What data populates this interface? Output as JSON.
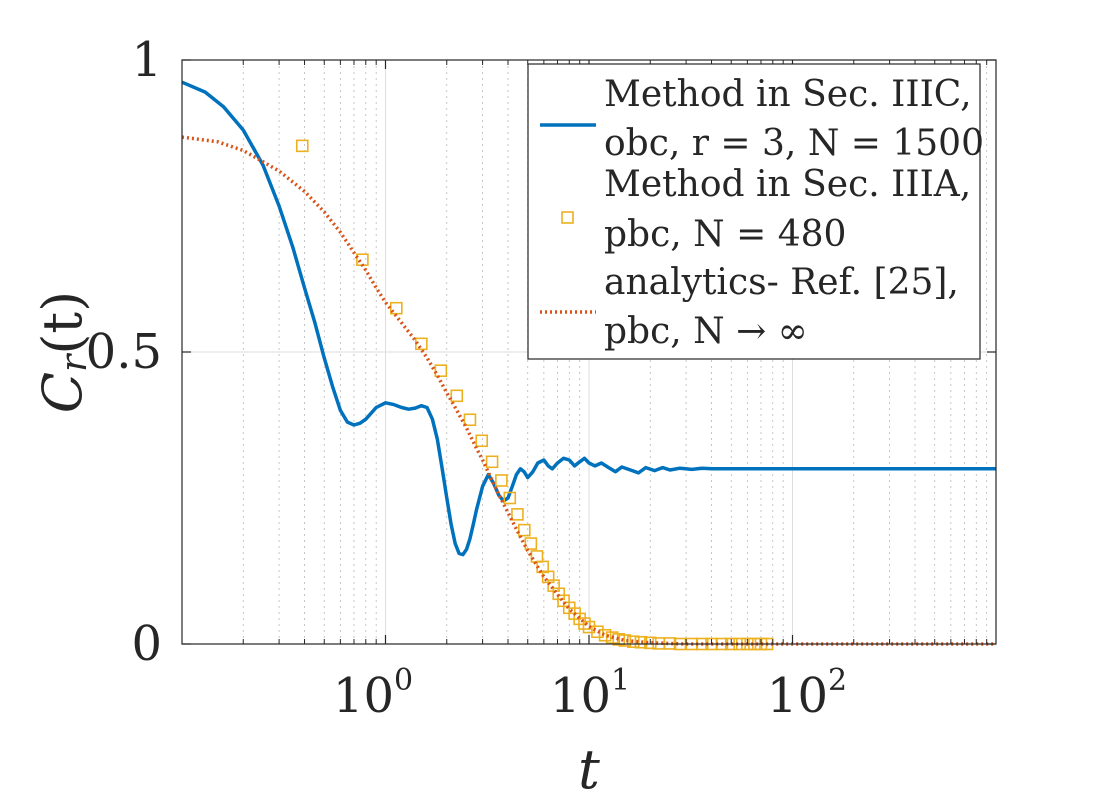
{
  "chart_data": {
    "type": "line",
    "xscale": "log",
    "xlim": [
      0.1,
      1000
    ],
    "ylim": [
      0,
      1
    ],
    "grid": true,
    "xlabel": "t",
    "ylabel": "C_r(t)",
    "ylabel_main": "C",
    "ylabel_sub": "r",
    "ylabel_args": "(t)",
    "xticks": [
      {
        "value": 1,
        "base": "10",
        "exp": "0"
      },
      {
        "value": 10,
        "base": "10",
        "exp": "1"
      },
      {
        "value": 100,
        "base": "10",
        "exp": "2"
      }
    ],
    "yticks": [
      {
        "value": 0,
        "label": "0"
      },
      {
        "value": 0.5,
        "label": "0.5"
      },
      {
        "value": 1,
        "label": "1"
      }
    ],
    "legend_position": "top-right",
    "series": [
      {
        "name": "Method in Sec. IIIC, obc, r = 3, N = 1500",
        "legend_line1": "Method in Sec. IIIC,",
        "legend_line2": "obc, r = 3, N = 1500",
        "style": "solid",
        "color": "#0072BD",
        "x": [
          0.1,
          0.13,
          0.16,
          0.2,
          0.25,
          0.3,
          0.35,
          0.4,
          0.45,
          0.5,
          0.55,
          0.6,
          0.65,
          0.7,
          0.75,
          0.8,
          0.9,
          1.0,
          1.1,
          1.2,
          1.3,
          1.4,
          1.5,
          1.6,
          1.7,
          1.8,
          1.9,
          2.0,
          2.1,
          2.2,
          2.3,
          2.4,
          2.5,
          2.6,
          2.7,
          2.8,
          3.0,
          3.2,
          3.4,
          3.6,
          3.8,
          4.0,
          4.2,
          4.4,
          4.6,
          4.8,
          5.0,
          5.3,
          5.6,
          6.0,
          6.3,
          6.6,
          7.0,
          7.5,
          8.0,
          8.5,
          9.0,
          9.5,
          10,
          10.7,
          11.5,
          12.5,
          13.5,
          14.5,
          16,
          17.5,
          19,
          21,
          23,
          25,
          28,
          32,
          36,
          40,
          50,
          70,
          100,
          150,
          200,
          300,
          500,
          700,
          1000
        ],
        "y": [
          0.962,
          0.945,
          0.92,
          0.88,
          0.82,
          0.75,
          0.68,
          0.61,
          0.55,
          0.49,
          0.44,
          0.4,
          0.38,
          0.375,
          0.378,
          0.385,
          0.405,
          0.413,
          0.41,
          0.405,
          0.402,
          0.404,
          0.408,
          0.405,
          0.385,
          0.35,
          0.3,
          0.25,
          0.205,
          0.172,
          0.155,
          0.153,
          0.162,
          0.18,
          0.205,
          0.23,
          0.27,
          0.29,
          0.275,
          0.255,
          0.245,
          0.25,
          0.27,
          0.29,
          0.3,
          0.295,
          0.285,
          0.295,
          0.31,
          0.315,
          0.305,
          0.3,
          0.31,
          0.318,
          0.315,
          0.305,
          0.312,
          0.318,
          0.31,
          0.305,
          0.31,
          0.302,
          0.295,
          0.303,
          0.298,
          0.293,
          0.302,
          0.297,
          0.302,
          0.298,
          0.301,
          0.299,
          0.301,
          0.3,
          0.3,
          0.3,
          0.3,
          0.3,
          0.3,
          0.3,
          0.3,
          0.3,
          0.3
        ]
      },
      {
        "name": "Method in Sec. IIIA, pbc, N = 480",
        "legend_line1": "Method in Sec. IIIA,",
        "legend_line2": "pbc, N = 480",
        "style": "squares",
        "color": "#EDB120",
        "x": [
          0.39,
          0.77,
          1.13,
          1.5,
          1.87,
          2.24,
          2.6,
          2.97,
          3.34,
          3.71,
          4.08,
          4.45,
          4.81,
          5.18,
          5.55,
          5.92,
          6.3,
          6.7,
          7.1,
          7.5,
          8.0,
          8.5,
          9.0,
          9.5,
          10.0,
          11.0,
          12.0,
          13.0,
          14.0,
          15.0,
          16.5,
          18.0,
          20.0,
          22.0,
          25.0,
          28.0,
          32.0,
          36.0,
          40.0,
          45.0,
          50.0,
          55.0,
          60.0,
          65.0,
          70.0,
          75.0
        ],
        "y": [
          0.853,
          0.658,
          0.575,
          0.514,
          0.468,
          0.425,
          0.384,
          0.348,
          0.312,
          0.28,
          0.25,
          0.222,
          0.195,
          0.172,
          0.15,
          0.132,
          0.115,
          0.1,
          0.086,
          0.074,
          0.062,
          0.052,
          0.043,
          0.035,
          0.029,
          0.021,
          0.015,
          0.011,
          0.008,
          0.006,
          0.004,
          0.003,
          0.002,
          0.001,
          0.001,
          0.0,
          0.0,
          0.0,
          0.0,
          0.0,
          0.0,
          0.0,
          0.0,
          0.0,
          0.0,
          0.0
        ]
      },
      {
        "name": "analytics- Ref. [25], pbc, N → ∞",
        "legend_line1": "analytics- Ref. [25],",
        "legend_line2": "pbc, N → ∞",
        "style": "dotted",
        "color": "#D95319",
        "x": [
          0.1,
          0.15,
          0.2,
          0.3,
          0.4,
          0.5,
          0.6,
          0.7,
          0.8,
          0.9,
          1.0,
          1.2,
          1.4,
          1.6,
          1.8,
          2.0,
          2.2,
          2.5,
          2.8,
          3.0,
          3.5,
          4.0,
          4.5,
          5.0,
          6.0,
          7.0,
          8.0,
          10.0,
          12.0,
          15.0,
          20.0,
          30.0,
          50.0,
          100.0,
          300.0,
          1000.0
        ],
        "y": [
          0.868,
          0.86,
          0.845,
          0.81,
          0.775,
          0.74,
          0.705,
          0.67,
          0.64,
          0.61,
          0.585,
          0.55,
          0.52,
          0.49,
          0.46,
          0.43,
          0.405,
          0.37,
          0.335,
          0.315,
          0.265,
          0.225,
          0.19,
          0.16,
          0.115,
          0.085,
          0.06,
          0.03,
          0.015,
          0.006,
          0.002,
          0.0,
          0.0,
          0.0,
          0.0,
          0.0
        ]
      }
    ]
  }
}
